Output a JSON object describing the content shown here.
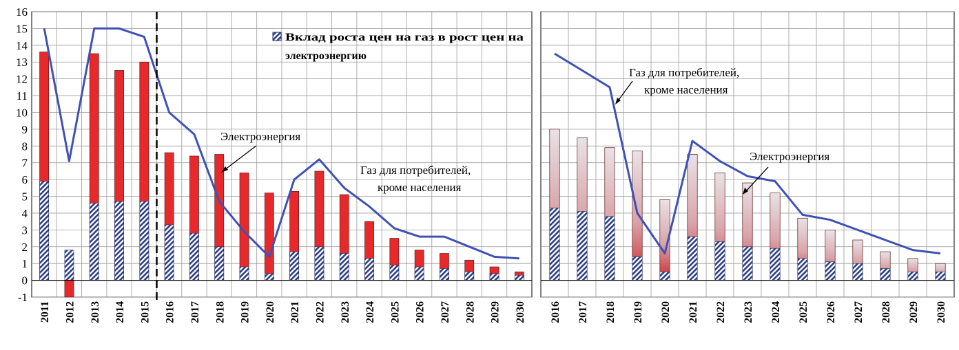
{
  "chart_data": [
    {
      "type": "bar",
      "y_ticks": [
        "-1",
        "0",
        "1",
        "2",
        "3",
        "4",
        "5",
        "6",
        "7",
        "8",
        "9",
        "10",
        "11",
        "12",
        "13",
        "14",
        "15",
        "16"
      ],
      "ylim": [
        -1,
        16
      ],
      "grid": true,
      "categories": [
        "2011",
        "2012",
        "2013",
        "2014",
        "2015",
        "2016",
        "2017",
        "2018",
        "2019",
        "2020",
        "2021",
        "2022",
        "2023",
        "2024",
        "2025",
        "2026",
        "2027",
        "2028",
        "2029",
        "2030"
      ],
      "bars_total": [
        13.6,
        -1.0,
        13.5,
        12.5,
        13.0,
        7.6,
        7.4,
        7.5,
        6.4,
        5.2,
        5.3,
        6.5,
        5.1,
        3.5,
        2.5,
        1.8,
        1.6,
        1.2,
        0.8,
        0.5
      ],
      "bars_gas_contribution": [
        5.9,
        1.8,
        4.6,
        4.7,
        4.7,
        3.3,
        2.8,
        2.0,
        0.8,
        0.4,
        1.7,
        2.0,
        1.6,
        1.3,
        0.9,
        0.8,
        0.7,
        0.5,
        0.4,
        0.3
      ],
      "line_gas": [
        15.0,
        7.1,
        15.0,
        15.0,
        14.5,
        10.0,
        8.7,
        4.7,
        2.9,
        1.4,
        6.0,
        7.2,
        5.5,
        4.4,
        3.1,
        2.6,
        2.6,
        2.0,
        1.4,
        1.3
      ],
      "forecast_divider_after": "2015",
      "legend": {
        "gas_contribution": "Вклад роста цен на газ в рост цен на электроэнергию"
      },
      "annotations": {
        "electricity": "Электроэнергия",
        "gas_line1": "Газ для потребителей,",
        "gas_line2": "кроме населения"
      },
      "colors": {
        "bar": "#e8292b",
        "hatch": "#2c3e84",
        "line": "#3f51b5"
      }
    },
    {
      "type": "bar",
      "ylim": [
        -1,
        16
      ],
      "grid": true,
      "categories": [
        "2016",
        "2017",
        "2018",
        "2019",
        "2020",
        "2021",
        "2022",
        "2023",
        "2024",
        "2025",
        "2026",
        "2027",
        "2028",
        "2029",
        "2030"
      ],
      "bars_total": [
        9.0,
        8.5,
        7.9,
        7.7,
        4.8,
        7.5,
        6.4,
        5.8,
        5.2,
        3.7,
        3.0,
        2.4,
        1.7,
        1.3,
        1.0
      ],
      "bars_gas_contribution": [
        4.3,
        4.1,
        3.8,
        1.4,
        0.5,
        2.6,
        2.3,
        2.0,
        1.9,
        1.3,
        1.1,
        1.0,
        0.7,
        0.5,
        0.5
      ],
      "line_gas": [
        13.5,
        12.5,
        11.5,
        4.0,
        1.6,
        8.3,
        7.1,
        6.2,
        5.9,
        3.9,
        3.6,
        3.0,
        2.4,
        1.8,
        1.6
      ],
      "annotations": {
        "electricity": "Электроэнергия",
        "gas_line1": "Газ для потребителей,",
        "gas_line2": "кроме населения"
      },
      "colors": {
        "bar_top": "#e7dde2",
        "bar_bottom": "#cc2d30",
        "hatch": "#2c3e84",
        "line": "#3f51b5"
      }
    }
  ]
}
